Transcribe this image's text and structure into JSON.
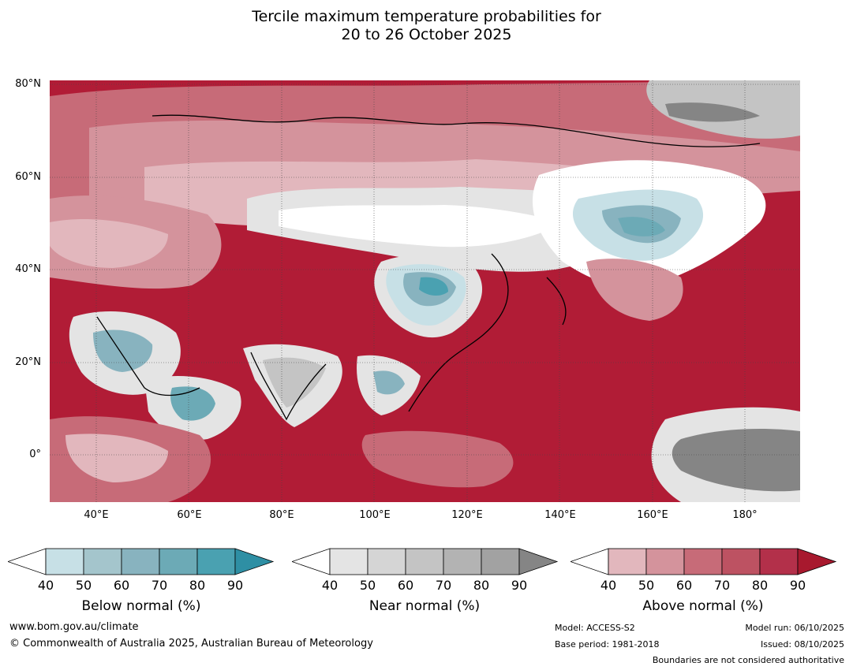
{
  "title": {
    "line1": "Tercile maximum temperature probabilities for",
    "line2": "20 to 26 October 2025"
  },
  "axes": {
    "lat_labels": [
      "80°N",
      "60°N",
      "40°N",
      "20°N",
      "0°"
    ],
    "lon_labels": [
      "40°E",
      "60°E",
      "80°E",
      "100°E",
      "120°E",
      "140°E",
      "160°E",
      "180°"
    ],
    "lat_range": [
      -10,
      81
    ],
    "lon_range": [
      30,
      192
    ]
  },
  "colorbars": [
    {
      "name": "below",
      "title": "Below normal (%)",
      "ticks": [
        "40",
        "50",
        "60",
        "70",
        "80",
        "90"
      ],
      "colors": [
        "#c7e0e6",
        "#a4c5cc",
        "#88b3bf",
        "#6caab6",
        "#4aa1b1",
        "#2e8fa4"
      ]
    },
    {
      "name": "near",
      "title": "Near normal (%)",
      "ticks": [
        "40",
        "50",
        "60",
        "70",
        "80",
        "90"
      ],
      "colors": [
        "#e4e4e4",
        "#d5d5d5",
        "#c4c4c4",
        "#b3b3b3",
        "#a2a2a2",
        "#858585"
      ]
    },
    {
      "name": "above",
      "title": "Above normal (%)",
      "ticks": [
        "40",
        "50",
        "60",
        "70",
        "80",
        "90"
      ],
      "colors": [
        "#e2b7bd",
        "#d4939c",
        "#c76b78",
        "#bd5262",
        "#b3304a",
        "#a8192e"
      ]
    }
  ],
  "footer": {
    "url": "www.bom.gov.au/climate",
    "copyright": "© Commonwealth of Australia 2025, Australian Bureau of Meteorology",
    "model": "Model: ACCESS-S2",
    "base_period": "Base period: 1981-2018",
    "model_run": "Model run: 06/10/2025",
    "issued": "Issued: 08/10/2025",
    "disclaimer": "Boundaries are not considered authoritative"
  }
}
